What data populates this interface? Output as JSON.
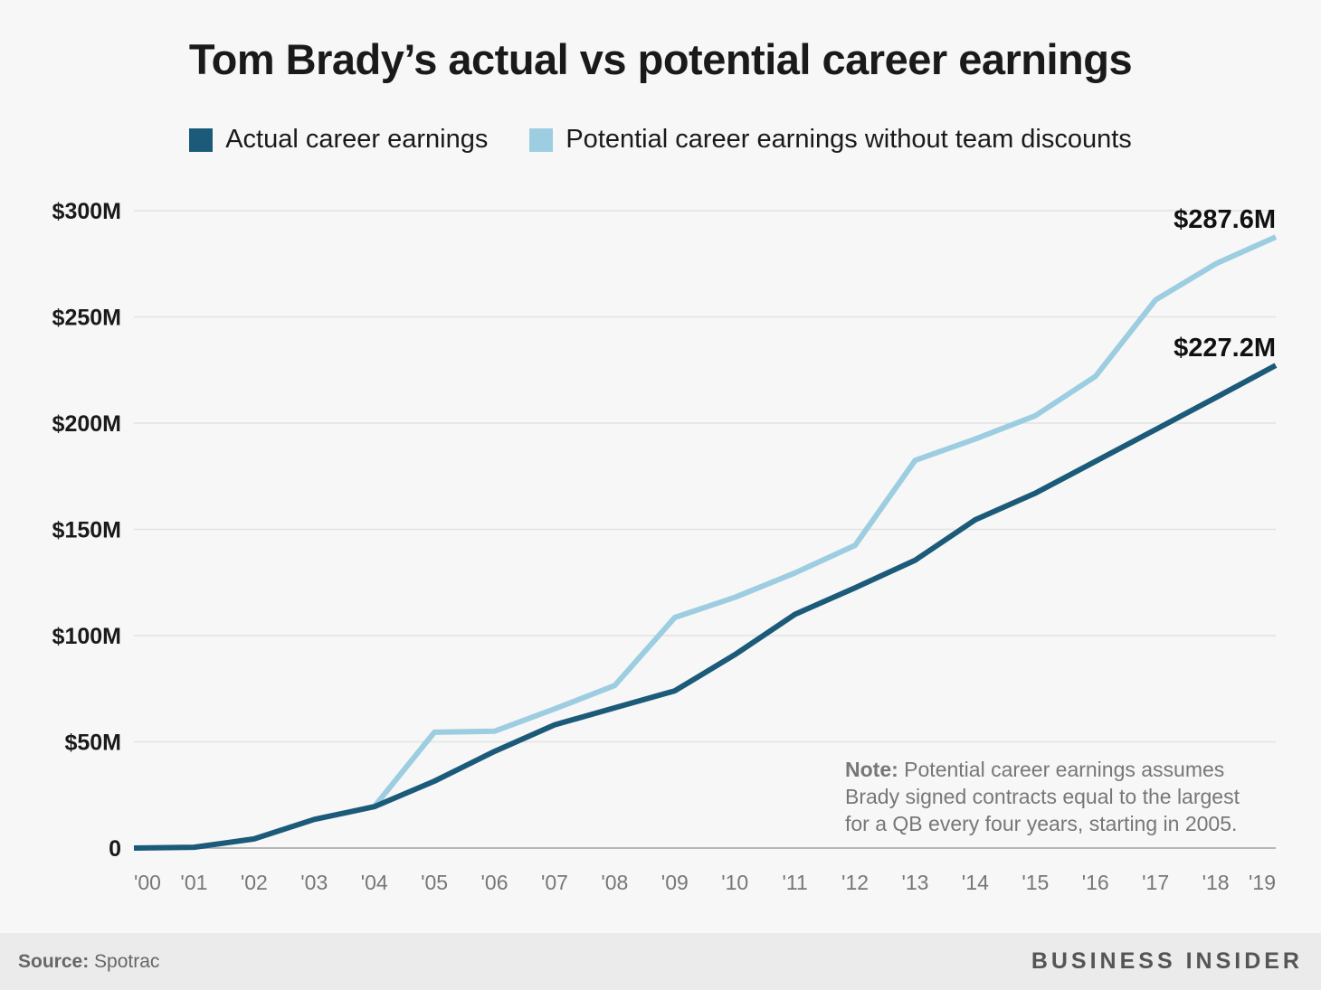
{
  "chart_data": {
    "type": "line",
    "title": "Tom Brady’s actual vs potential career earnings",
    "categories": [
      "'00",
      "'01",
      "'02",
      "'03",
      "'04",
      "'05",
      "'06",
      "'07",
      "'08",
      "'09",
      "'10",
      "'11",
      "'12",
      "'13",
      "'14",
      "'15",
      "'16",
      "'17",
      "'18",
      "'19"
    ],
    "series": [
      {
        "name": "Actual career earnings",
        "color": "#1b5a78",
        "values": [
          0,
          0.4,
          4.3,
          13.5,
          19.5,
          31.5,
          45.5,
          58,
          66,
          74,
          91,
          110,
          122.5,
          135.5,
          154.5,
          167,
          182,
          197,
          212,
          227.2
        ]
      },
      {
        "name": "Potential career earnings without team discounts",
        "color": "#9ccde1",
        "values": [
          null,
          null,
          null,
          null,
          19.5,
          54.5,
          55,
          65.5,
          76.5,
          108.5,
          118,
          129.5,
          142.5,
          182.5,
          192.5,
          203.5,
          222,
          258,
          275,
          287.6
        ]
      }
    ],
    "y_ticks": [
      {
        "value": 300,
        "label": "$300M"
      },
      {
        "value": 250,
        "label": "$250M"
      },
      {
        "value": 200,
        "label": "$200M"
      },
      {
        "value": 150,
        "label": "$150M"
      },
      {
        "value": 100,
        "label": "$100M"
      },
      {
        "value": 50,
        "label": "$50M"
      },
      {
        "value": 0,
        "label": "0"
      }
    ],
    "ylim": [
      0,
      300
    ],
    "grid": true,
    "legend_position": "top",
    "annotations": {
      "potential_end_label": "$287.6M",
      "actual_end_label": "$227.2M",
      "note_bold": "Note:",
      "note_lines": [
        " Potential career earnings assumes",
        "Brady signed contracts equal to the largest",
        "for a QB every four years, starting in 2005."
      ]
    }
  },
  "footer": {
    "source_label": "Source:",
    "source_value": " Spotrac",
    "brand": "BUSINESS INSIDER"
  }
}
